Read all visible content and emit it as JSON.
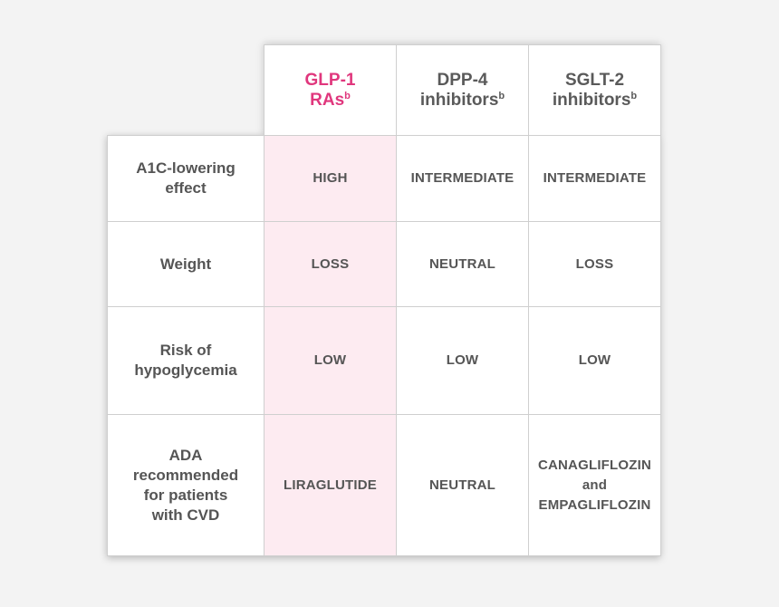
{
  "columns": [
    {
      "line1": "GLP-1",
      "line2": "RAs",
      "sup": "b",
      "highlight": true,
      "accent_color": "#e0377d"
    },
    {
      "line1": "DPP-4",
      "line2": "inhibitors",
      "sup": "b",
      "highlight": false
    },
    {
      "line1": "SGLT-2",
      "line2": "inhibitors",
      "sup": "b",
      "highlight": false
    }
  ],
  "rows": [
    {
      "label_lines": [
        "A1C-lowering",
        "effect"
      ],
      "values": [
        "HIGH",
        "INTERMEDIATE",
        "INTERMEDIATE"
      ]
    },
    {
      "label_lines": [
        "Weight"
      ],
      "values": [
        "LOSS",
        "NEUTRAL",
        "LOSS"
      ]
    },
    {
      "label_lines": [
        "Risk of",
        "hypoglycemia"
      ],
      "values": [
        "LOW",
        "LOW",
        "LOW"
      ]
    },
    {
      "label_lines": [
        "ADA",
        "recommended",
        "for patients",
        "with CVD"
      ],
      "values": [
        "LIRAGLUTIDE",
        "NEUTRAL",
        "CANAGLIFLOZIN and EMPAGLIFLOZIN"
      ],
      "last_cell_lines": [
        "CANAGLIFLOZIN",
        "and",
        "EMPAGLIFLOZIN"
      ]
    }
  ],
  "colors": {
    "highlight_background": "#fdebf1",
    "text": "#555555",
    "grid": "#cfcfcf",
    "page_background": "#f3f3f3"
  }
}
